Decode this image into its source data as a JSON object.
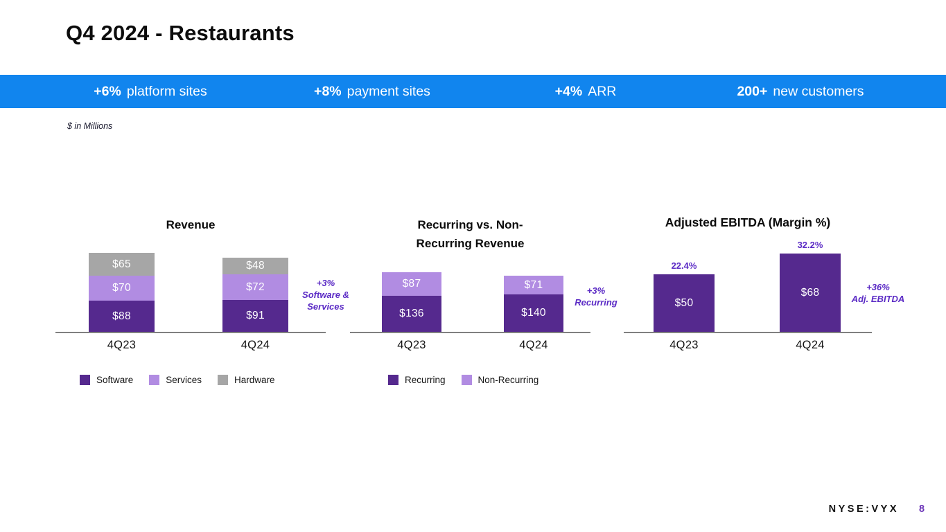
{
  "slide": {
    "title": "Q4 2024 - Restaurants",
    "units_note": "$ in Millions",
    "footer": {
      "ticker": "NYSE:VYX",
      "page_number": "8"
    }
  },
  "banner": {
    "stats": [
      {
        "value": "+6%",
        "label": "platform sites"
      },
      {
        "value": "+8%",
        "label": "payment sites"
      },
      {
        "value": "+4%",
        "label": "ARR"
      },
      {
        "value": "200+",
        "label": "new customers"
      }
    ]
  },
  "colors": {
    "banner_blue": "#1185ee",
    "software_purple": "#55298e",
    "services_lilac": "#b18ce2",
    "hardware_gray": "#a6a6a6",
    "accent_purple": "#5b2bc5",
    "page_number_purple": "#6c35b8",
    "axis_gray": "#808080",
    "bar_label_white": "#ffffff"
  },
  "chart_data": [
    {
      "type": "bar",
      "stacked": true,
      "title": "Revenue",
      "unit": "$ millions",
      "categories": [
        "4Q23",
        "4Q24"
      ],
      "series": [
        {
          "name": "Software",
          "color_key": "software_purple",
          "values": [
            88,
            91
          ],
          "labels": [
            "$88",
            "$91"
          ]
        },
        {
          "name": "Services",
          "color_key": "services_lilac",
          "values": [
            70,
            72
          ],
          "labels": [
            "$70",
            "$72"
          ]
        },
        {
          "name": "Hardware",
          "color_key": "hardware_gray",
          "values": [
            65,
            48
          ],
          "labels": [
            "$65",
            "$48"
          ]
        }
      ],
      "totals": [
        223,
        211
      ],
      "annotation": "+3%\nSoftware &\nServices",
      "legend": [
        {
          "label": "Software",
          "color_key": "software_purple"
        },
        {
          "label": "Services",
          "color_key": "services_lilac"
        },
        {
          "label": "Hardware",
          "color_key": "hardware_gray"
        }
      ],
      "legend_position": "bottom-left",
      "axes_hidden": true
    },
    {
      "type": "bar",
      "stacked": true,
      "title": "Recurring vs. Non-\nRecurring Revenue",
      "unit": "$ millions",
      "categories": [
        "4Q23",
        "4Q24"
      ],
      "series": [
        {
          "name": "Recurring",
          "color_key": "software_purple",
          "values": [
            136,
            140
          ],
          "labels": [
            "$136",
            "$140"
          ]
        },
        {
          "name": "Non-Recurring",
          "color_key": "services_lilac",
          "values": [
            87,
            71
          ],
          "labels": [
            "$87",
            "$71"
          ]
        }
      ],
      "totals": [
        223,
        211
      ],
      "annotation": "+3%\nRecurring",
      "legend": [
        {
          "label": "Recurring",
          "color_key": "software_purple"
        },
        {
          "label": "Non-Recurring",
          "color_key": "services_lilac"
        }
      ],
      "legend_position": "bottom-left",
      "axes_hidden": true
    },
    {
      "type": "bar",
      "stacked": false,
      "title": "Adjusted EBITDA (Margin %)",
      "unit": "$ millions",
      "categories": [
        "4Q23",
        "4Q24"
      ],
      "series": [
        {
          "name": "Adj. EBITDA",
          "color_key": "software_purple",
          "values": [
            50,
            68
          ],
          "labels": [
            "$50",
            "$68"
          ]
        }
      ],
      "bar_top_labels": [
        "22.4%",
        "32.2%"
      ],
      "margins_pct": [
        22.4,
        32.2
      ],
      "annotation": "+36%\nAdj. EBITDA",
      "axes_hidden": true
    }
  ]
}
